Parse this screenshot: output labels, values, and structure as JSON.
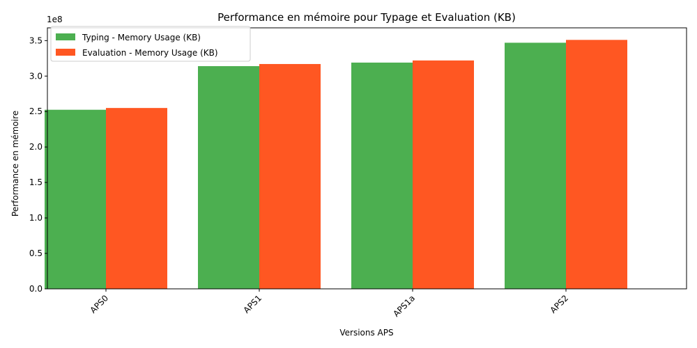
{
  "chart_data": {
    "type": "bar",
    "title": "Performance en mémoire pour Typage et Evaluation (KB)",
    "xlabel": "Versions APS",
    "ylabel": "Performance en mémoire",
    "y_offset_label": "1e8",
    "categories": [
      "APS0",
      "APS1",
      "APS1a",
      "APS2"
    ],
    "series": [
      {
        "name": "Typing - Memory Usage (KB)",
        "color": "#4caf50",
        "values": [
          252500000,
          314000000,
          319000000,
          347000000
        ]
      },
      {
        "name": "Evaluation - Memory Usage (KB)",
        "color": "#ff5722",
        "values": [
          255000000,
          317000000,
          322000000,
          351000000
        ]
      }
    ],
    "ylim": [
      0,
      368000000
    ],
    "yticks": [
      {
        "value": 0,
        "label": "0.0"
      },
      {
        "value": 50000000,
        "label": "0.5"
      },
      {
        "value": 100000000,
        "label": "1.0"
      },
      {
        "value": 150000000,
        "label": "1.5"
      },
      {
        "value": 200000000,
        "label": "2.0"
      },
      {
        "value": 250000000,
        "label": "2.5"
      },
      {
        "value": 300000000,
        "label": "3.0"
      },
      {
        "value": 350000000,
        "label": "3.5"
      }
    ],
    "grid": false,
    "legend_position": "upper-left",
    "xtick_rotation": 45
  }
}
